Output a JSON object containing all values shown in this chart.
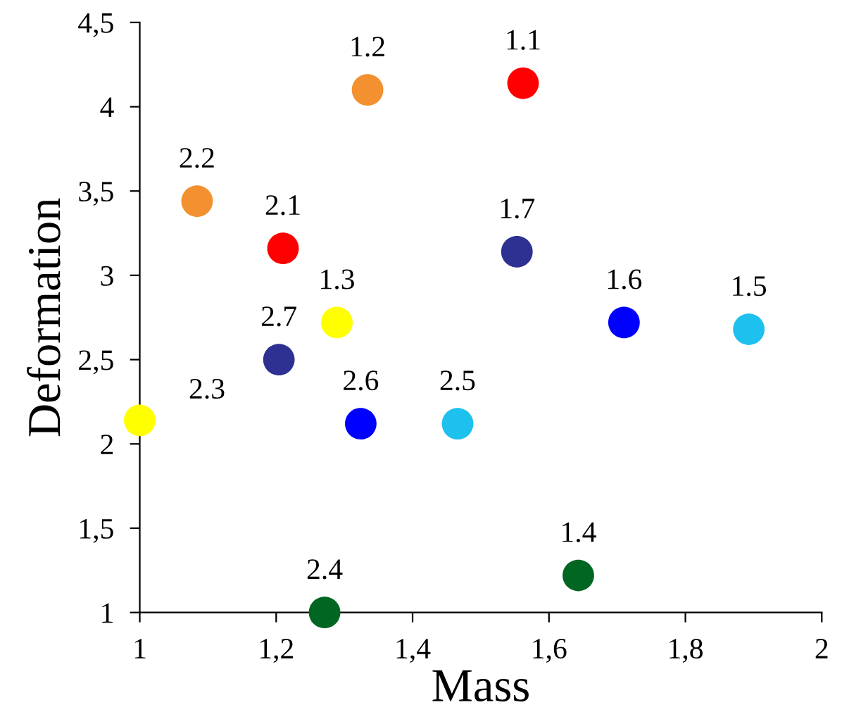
{
  "chart_data": {
    "type": "scatter",
    "xlabel": "Mass",
    "ylabel": "Deformation",
    "x": [
      1.562,
      1.334,
      1.289,
      1.643,
      1.893,
      1.71,
      1.553,
      1.21,
      1.084,
      1.0,
      1.271,
      1.466,
      1.324,
      1.204
    ],
    "values": [
      4.14,
      4.1,
      2.72,
      1.22,
      2.68,
      2.72,
      3.14,
      3.16,
      3.44,
      2.14,
      1.0,
      2.12,
      2.12,
      2.5
    ],
    "colors": [
      "#ff0000",
      "#f39030",
      "#ffff00",
      "#006622",
      "#1ec0ee",
      "#0000ff",
      "#2e3192",
      "#ff0000",
      "#f39030",
      "#ffff00",
      "#006622",
      "#1ec0ee",
      "#0000ff",
      "#2e3192"
    ],
    "marker": "circle",
    "xlim": [
      1,
      2
    ],
    "ylim": [
      1,
      4.5
    ],
    "xticks": [
      1,
      {
        "value": 1.2,
        "label": "1,2"
      },
      {
        "value": 1.4,
        "label": "1,4"
      },
      {
        "value": 1.6,
        "label": "1,6"
      },
      {
        "value": 1.8,
        "label": "1,8"
      },
      2
    ],
    "yticks": [
      1,
      {
        "value": 1.5,
        "label": "1,5"
      },
      2,
      {
        "value": 2.5,
        "label": "2,5"
      },
      3,
      {
        "value": 3.5,
        "label": "3,5"
      },
      4,
      {
        "value": 4.5,
        "label": "4,5"
      }
    ],
    "grid": false,
    "annotations": [
      {
        "text": "1.1",
        "x": 1.562,
        "y": 4.14
      },
      {
        "text": "1.2",
        "x": 1.334,
        "y": 4.1
      },
      {
        "text": "1.3",
        "x": 1.289,
        "y": 2.72
      },
      {
        "text": "1.4",
        "x": 1.643,
        "y": 1.22
      },
      {
        "text": "1.5",
        "x": 1.893,
        "y": 2.68
      },
      {
        "text": "1.6",
        "x": 1.71,
        "y": 2.72
      },
      {
        "text": "1.7",
        "x": 1.553,
        "y": 3.14
      },
      {
        "text": "2.1",
        "x": 1.21,
        "y": 3.16
      },
      {
        "text": "2.2",
        "x": 1.084,
        "y": 3.44
      },
      {
        "text": "2.3",
        "x": 1.0,
        "y": 2.14
      },
      {
        "text": "2.4",
        "x": 1.271,
        "y": 1.0
      },
      {
        "text": "2.5",
        "x": 1.466,
        "y": 2.12
      },
      {
        "text": "2.6",
        "x": 1.324,
        "y": 2.12
      },
      {
        "text": "2.7",
        "x": 1.204,
        "y": 2.5
      }
    ]
  }
}
